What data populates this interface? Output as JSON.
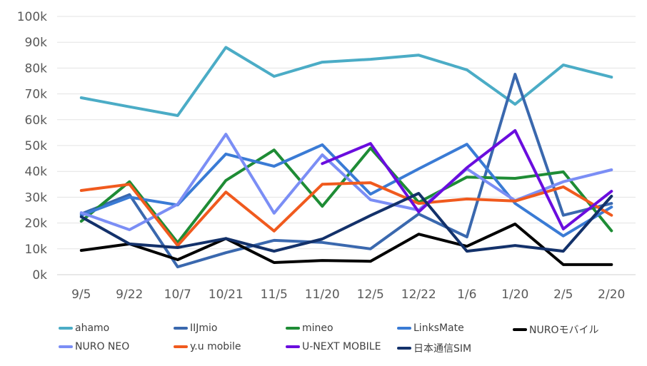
{
  "chart_data": {
    "type": "line",
    "title": "",
    "xlabel": "",
    "ylabel": "",
    "ylim": [
      0,
      100000
    ],
    "yticks": [
      "0k",
      "10k",
      "20k",
      "30k",
      "40k",
      "50k",
      "60k",
      "70k",
      "80k",
      "90k",
      "100k"
    ],
    "grid": true,
    "legend_position": "bottom",
    "categories": [
      "9/5",
      "9/22",
      "10/7",
      "10/21",
      "11/5",
      "11/20",
      "12/5",
      "12/22",
      "1/6",
      "1/20",
      "2/5",
      "2/20"
    ],
    "series": [
      {
        "name": "ahamo",
        "color": "#4BACC6",
        "values": [
          68500,
          65000,
          61600,
          88000,
          76800,
          82300,
          83400,
          85000,
          79300,
          66000,
          81200,
          76500
        ]
      },
      {
        "name": "IIJmio",
        "color": "#3A68AE",
        "values": [
          23500,
          31000,
          3000,
          8500,
          13300,
          12500,
          10000,
          23500,
          14600,
          77600,
          23000,
          27600
        ]
      },
      {
        "name": "mineo",
        "color": "#1E8C35",
        "values": [
          20700,
          36000,
          12400,
          36500,
          48300,
          26500,
          49000,
          28000,
          37800,
          37300,
          39800,
          17000
        ]
      },
      {
        "name": "LinksMate",
        "color": "#3A7BD5",
        "values": [
          23000,
          30000,
          27000,
          46700,
          42000,
          50300,
          31200,
          41000,
          50500,
          27600,
          15000,
          26200
        ]
      },
      {
        "name": "NUROモバイル",
        "color": "#000000",
        "values": [
          9400,
          11900,
          5800,
          14000,
          4700,
          5500,
          5200,
          15700,
          11000,
          19600,
          3900,
          3900
        ]
      },
      {
        "name": "NURO NEO",
        "color": "#7B8EF5",
        "values": [
          24000,
          17400,
          27300,
          54400,
          23800,
          46400,
          29000,
          25000,
          41000,
          28700,
          36000,
          40600
        ]
      },
      {
        "name": "y.u mobile",
        "color": "#F05A1E",
        "values": [
          32600,
          35000,
          11300,
          32000,
          16900,
          35000,
          35600,
          27600,
          29300,
          28500,
          34000,
          23000
        ]
      },
      {
        "name": "U-NEXT MOBILE",
        "color": "#6A0DDE",
        "values": [
          null,
          null,
          null,
          null,
          null,
          43000,
          50800,
          24300,
          41400,
          55800,
          17700,
          32300
        ]
      },
      {
        "name": "日本通信SIM",
        "color": "#13316A",
        "values": [
          22400,
          11900,
          10500,
          14000,
          9100,
          13800,
          22900,
          31500,
          9100,
          11300,
          9100,
          30400
        ]
      }
    ]
  }
}
